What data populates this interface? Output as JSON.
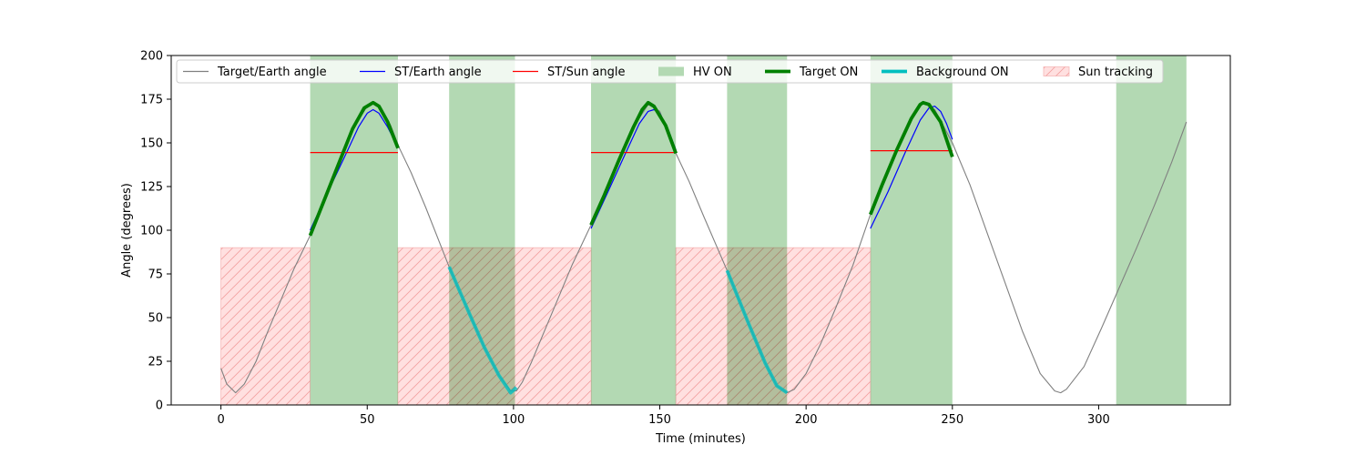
{
  "chart_data": {
    "type": "line",
    "title": "",
    "xlabel": "Time (minutes)",
    "ylabel": "Angle (degrees)",
    "xlim": [
      -17,
      345
    ],
    "ylim": [
      0,
      200
    ],
    "xticks": [
      0,
      50,
      100,
      150,
      200,
      250,
      300
    ],
    "yticks": [
      0,
      25,
      50,
      75,
      100,
      125,
      150,
      175,
      200
    ],
    "grid": false,
    "legend_position": "top",
    "colors": {
      "target_earth": "#808080",
      "st_earth": "#0000ff",
      "st_sun": "#ff0000",
      "hv_on": "#b3d9b3",
      "target_on": "#008000",
      "background_on": "#00bfbf",
      "sun_tracking": "#ffcccc"
    },
    "legend": [
      {
        "key": "target_earth",
        "label": "Target/Earth angle",
        "style": "line"
      },
      {
        "key": "st_earth",
        "label": "ST/Earth angle",
        "style": "line"
      },
      {
        "key": "st_sun",
        "label": "ST/Sun angle",
        "style": "line"
      },
      {
        "key": "hv_on",
        "label": "HV ON",
        "style": "patch"
      },
      {
        "key": "target_on",
        "label": "Target ON",
        "style": "thick"
      },
      {
        "key": "background_on",
        "label": "Background ON",
        "style": "thick"
      },
      {
        "key": "sun_tracking",
        "label": "Sun tracking",
        "style": "hatch"
      }
    ],
    "series": {
      "target_earth": {
        "name": "Target/Earth angle",
        "x": [
          0,
          2,
          5,
          8,
          12,
          16,
          20,
          25,
          30.5,
          35,
          40,
          45,
          50,
          52,
          54,
          58,
          61,
          65,
          70,
          78,
          85,
          90,
          95,
          99,
          101,
          103,
          106,
          110,
          115,
          120,
          126.5,
          131,
          136,
          141,
          146,
          150,
          155.5,
          160,
          165,
          173,
          180,
          186,
          190,
          193.5,
          196,
          200,
          205,
          210,
          216,
          222,
          226,
          231,
          236,
          240,
          244,
          250,
          256,
          262,
          268,
          274,
          280,
          285,
          287,
          289,
          295,
          301,
          307,
          313,
          319,
          325,
          330
        ],
        "y": [
          21,
          12,
          7,
          12,
          25,
          42,
          58,
          78,
          97,
          116,
          137,
          158,
          171,
          173,
          171,
          160,
          147,
          133,
          113,
          79,
          52,
          33,
          17,
          8,
          8,
          13,
          24,
          40,
          60,
          80,
          103,
          120,
          140,
          159,
          172,
          168,
          144,
          128,
          108,
          77,
          48,
          24,
          11,
          7,
          9,
          18,
          35,
          55,
          80,
          109,
          126,
          146,
          164,
          173,
          169,
          150,
          126,
          98,
          70,
          42,
          18,
          8,
          7,
          9,
          22,
          44,
          67,
          90,
          114,
          139,
          162
        ]
      },
      "st_earth": {
        "name": "ST/Earth angle",
        "segments": [
          {
            "x": [
              30.5,
              36,
              42,
              47,
              50,
              52,
              54,
              57,
              60
            ],
            "y": [
              100,
              120,
              141,
              159,
              167,
              169,
              167,
              159,
              149
            ]
          },
          {
            "x": [
              126.5,
              132,
              138,
              143,
              146,
              148,
              150,
              153,
              155.5
            ],
            "y": [
              101,
              121,
              143,
              161,
              168,
              169,
              167,
              157,
              146
            ]
          },
          {
            "x": [
              222,
              228,
              234,
              239,
              242,
              244,
              246,
              248,
              250
            ],
            "y": [
              101,
              122,
              145,
              163,
              170,
              171,
              168,
              161,
              152
            ]
          }
        ]
      },
      "st_sun": {
        "name": "ST/Sun angle",
        "segments": [
          {
            "x": [
              30.5,
              60.5
            ],
            "y": [
              144.5,
              144.5
            ]
          },
          {
            "x": [
              126.5,
              155.5
            ],
            "y": [
              144.5,
              144.5
            ]
          },
          {
            "x": [
              222,
              250
            ],
            "y": [
              145.5,
              145.5
            ]
          }
        ]
      },
      "target_on": {
        "name": "Target ON",
        "segments": [
          {
            "x": [
              30.5,
              35,
              40,
              45,
              49,
              52,
              54,
              57,
              60.5
            ],
            "y": [
              97,
              116,
              137,
              158,
              170,
              173,
              171,
              162,
              147
            ]
          },
          {
            "x": [
              126.5,
              131,
              136,
              141,
              144,
              146,
              148,
              152,
              155.5
            ],
            "y": [
              103,
              120,
              140,
              159,
              169,
              173,
              171,
              160,
              144
            ]
          },
          {
            "x": [
              222,
              226,
              231,
              236,
              239,
              240,
              242,
              246,
              250
            ],
            "y": [
              109,
              126,
              146,
              164,
              172,
              173,
              172,
              162,
              142
            ]
          }
        ]
      },
      "background_on": {
        "name": "Background ON",
        "segments": [
          {
            "x": [
              78,
              85,
              90,
              95,
              99,
              101
            ],
            "y": [
              79,
              52,
              33,
              17,
              7,
              10
            ]
          },
          {
            "x": [
              173,
              180,
              186,
              190,
              193.5
            ],
            "y": [
              77,
              48,
              24,
              11,
              7
            ]
          }
        ]
      }
    },
    "hv_on_intervals": [
      [
        30.5,
        60.5
      ],
      [
        78,
        100.5
      ],
      [
        126.5,
        155.5
      ],
      [
        173,
        193.5
      ],
      [
        222,
        250
      ],
      [
        306,
        330
      ]
    ],
    "sun_tracking_intervals": [
      [
        0,
        30.5
      ],
      [
        60.5,
        126.5
      ],
      [
        155.5,
        222
      ]
    ],
    "sun_tracking_level": 90
  }
}
